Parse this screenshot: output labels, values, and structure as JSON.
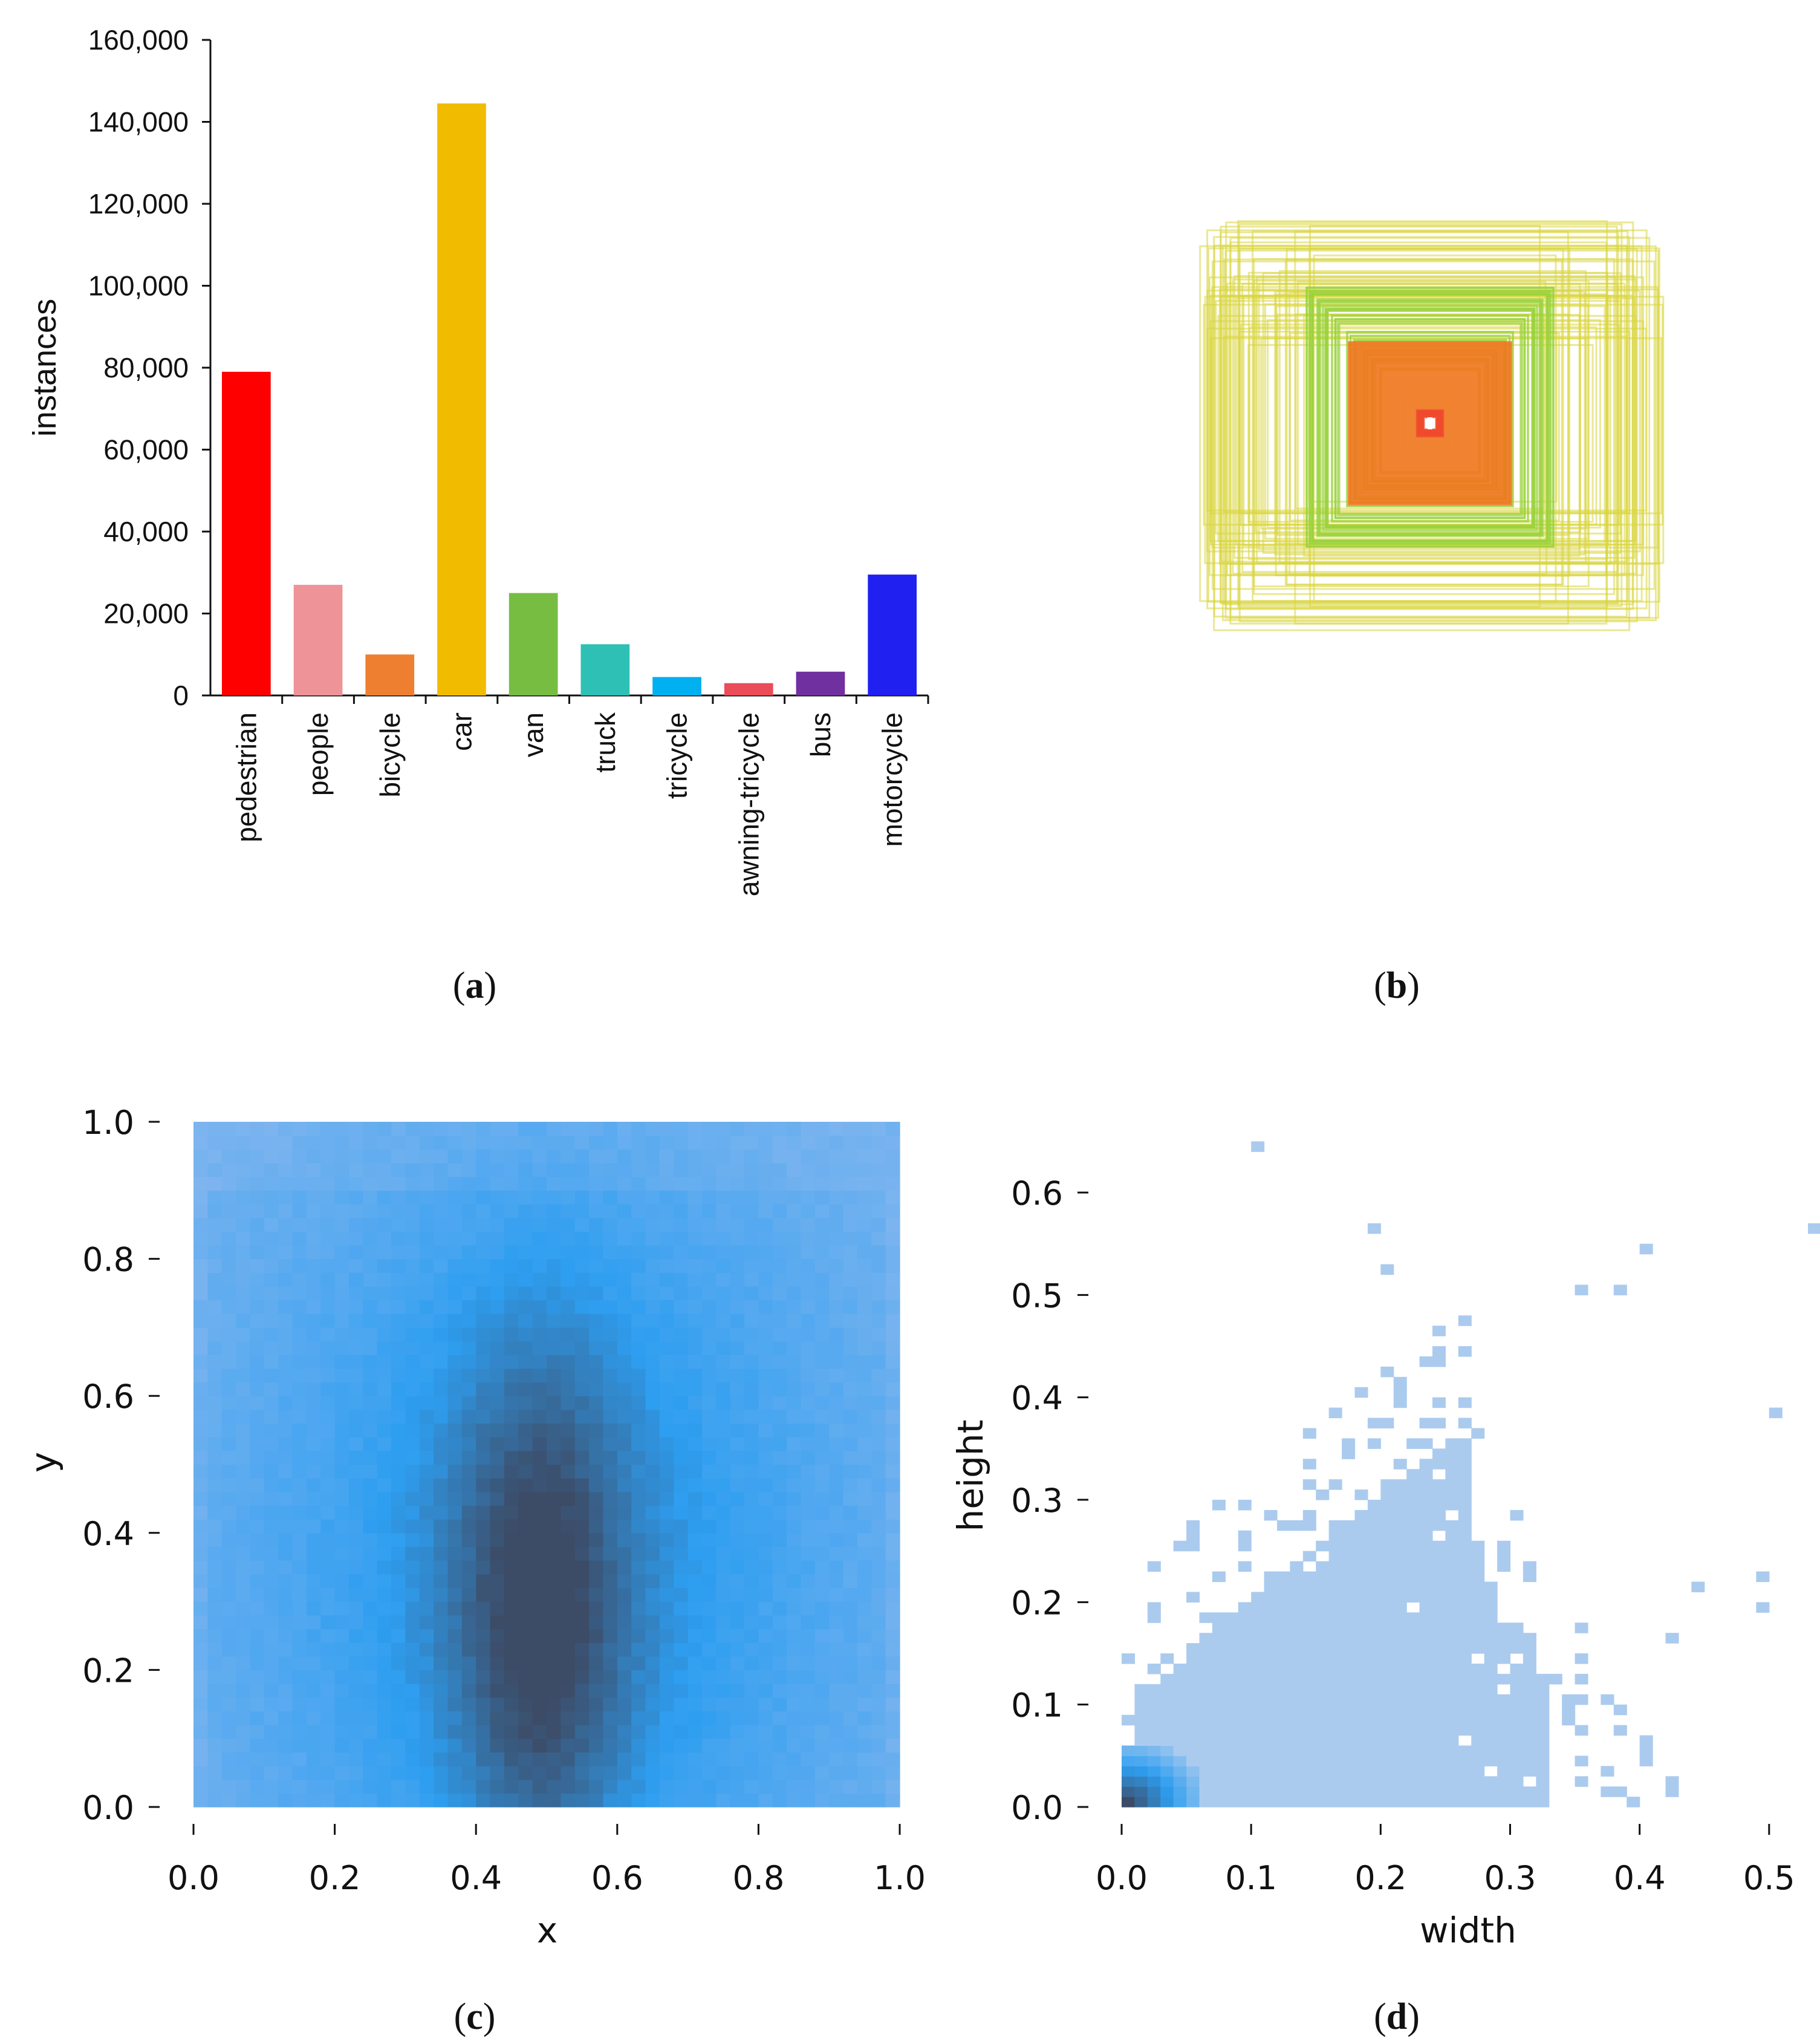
{
  "captions": {
    "a": {
      "letter": "a"
    },
    "b": {
      "letter": "b"
    },
    "c": {
      "letter": "c"
    },
    "d": {
      "letter": "d"
    }
  },
  "chart_data": [
    {
      "panel": "a",
      "type": "bar",
      "title": "",
      "xlabel": "",
      "ylabel": "instances",
      "ylim": [
        0,
        160000
      ],
      "yticks": [
        0,
        20000,
        40000,
        60000,
        80000,
        100000,
        120000,
        140000,
        160000
      ],
      "ytick_labels": [
        "0",
        "20,000",
        "40,000",
        "60,000",
        "80,000",
        "100,000",
        "120,000",
        "140,000",
        "160,000"
      ],
      "categories": [
        "pedestrian",
        "people",
        "bicycle",
        "car",
        "van",
        "truck",
        "tricycle",
        "awning-tricycle",
        "bus",
        "motorcycle"
      ],
      "values": [
        79000,
        27000,
        10000,
        144500,
        25000,
        12500,
        4500,
        3000,
        5800,
        29500
      ],
      "colors": [
        "#ff0000",
        "#ee9398",
        "#ee7f31",
        "#f1bc00",
        "#76bd42",
        "#2ec0b4",
        "#00b0f0",
        "#ea4c58",
        "#7030a0",
        "#2020f0"
      ]
    },
    {
      "panel": "b",
      "type": "other",
      "description_free": true,
      "box_color_outer": "#d8d640",
      "box_color_mid": "#9ad23c",
      "box_color_inner": "#f07820",
      "box_color_core": "#ee3b1b"
    },
    {
      "panel": "c",
      "type": "heatmap",
      "xlabel": "x",
      "ylabel": "y",
      "xlim": [
        0.0,
        1.0
      ],
      "ylim": [
        0.0,
        1.0
      ],
      "xticks": [
        "0.0",
        "0.2",
        "0.4",
        "0.6",
        "0.8",
        "1.0"
      ],
      "yticks": [
        "0.0",
        "0.2",
        "0.4",
        "0.6",
        "0.8",
        "1.0"
      ],
      "grid_bins": [
        50,
        50
      ],
      "peak_x": 0.49,
      "peak_y": 0.27,
      "color_low": "#8ab8ef",
      "color_mid": "#2e9ef0",
      "color_high": "#3c4b66"
    },
    {
      "panel": "d",
      "type": "heatmap",
      "xlabel": "width",
      "ylabel": "height",
      "xlim": [
        0.0,
        0.55
      ],
      "ylim": [
        0.0,
        0.65
      ],
      "xticks": [
        "0.0",
        "0.1",
        "0.2",
        "0.3",
        "0.4",
        "0.5"
      ],
      "yticks": [
        "0.0",
        "0.1",
        "0.2",
        "0.3",
        "0.4",
        "0.5",
        "0.6"
      ],
      "bin_size": 0.01,
      "dense_peak": [
        0.01,
        0.01
      ],
      "color_low": "#abcbee",
      "color_mid": "#2e9ef0",
      "color_high": "#3c4b66"
    }
  ]
}
